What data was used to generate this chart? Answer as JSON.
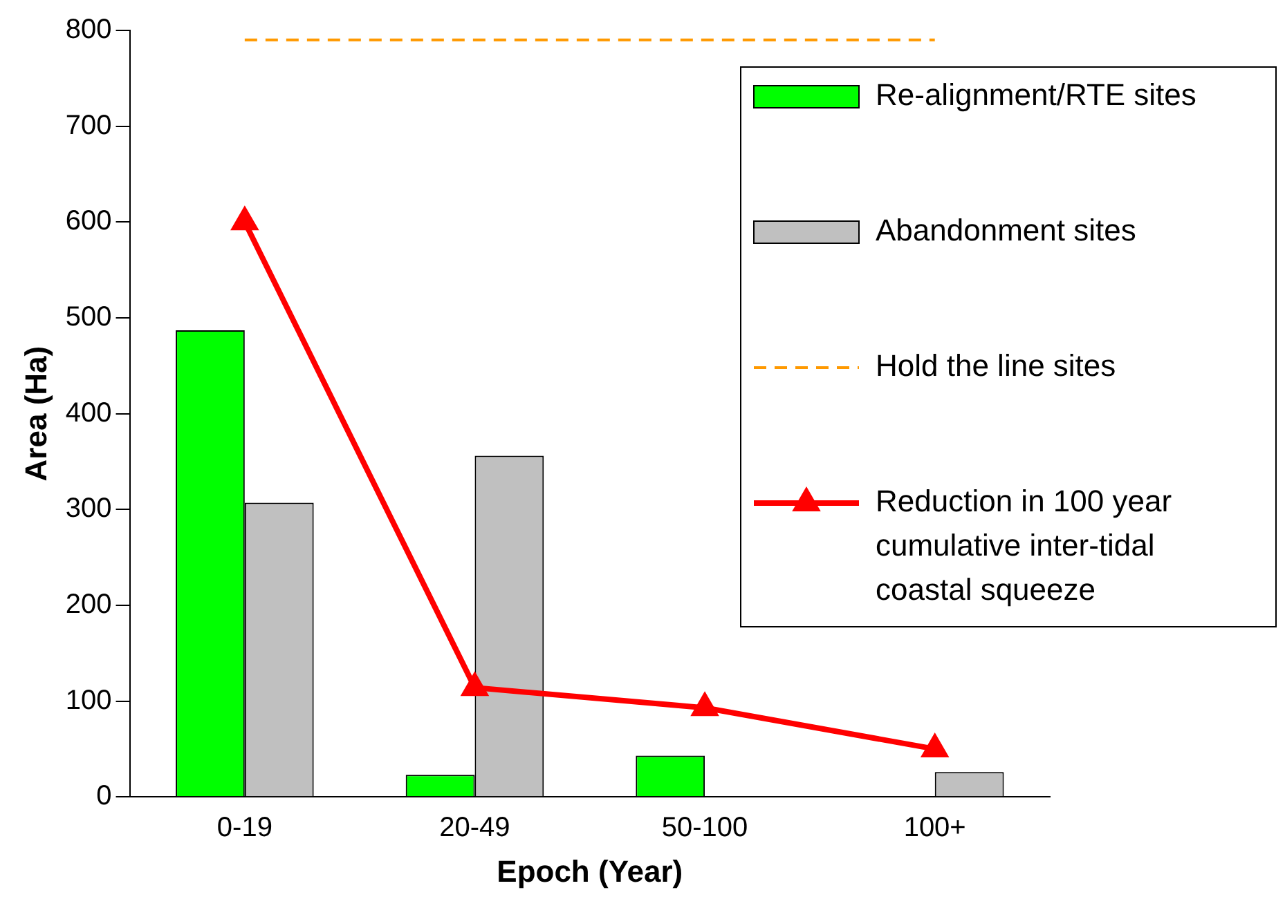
{
  "chart_data": {
    "type": "bar",
    "xlabel": "Epoch (Year)",
    "ylabel": "Area (Ha)",
    "categories": [
      "0-19",
      "20-49",
      "50-100",
      "100+"
    ],
    "ylim": [
      0,
      800
    ],
    "yticks": [
      0,
      100,
      200,
      300,
      400,
      500,
      600,
      700,
      800
    ],
    "legend": "top right",
    "series": [
      {
        "name": "Re-alignment/RTE sites",
        "color": "#00ff00",
        "values": [
          487,
          23,
          43,
          null
        ]
      },
      {
        "name": "Abandonment sites",
        "color": "#c0c0c0",
        "values": [
          307,
          356,
          null,
          26
        ]
      },
      {
        "name": "Hold the line sites",
        "type": "line",
        "color": "#ff9900",
        "line_style": "dashed",
        "marker": "none",
        "values": [
          790,
          790,
          790,
          790
        ]
      },
      {
        "name": "Reduction in 100 year cumulative inter-tidal coastal squeeze",
        "type": "line",
        "color": "#ff0000",
        "line_style": "solid",
        "marker": "triangle",
        "values": [
          600,
          114,
          93,
          50
        ]
      }
    ]
  }
}
